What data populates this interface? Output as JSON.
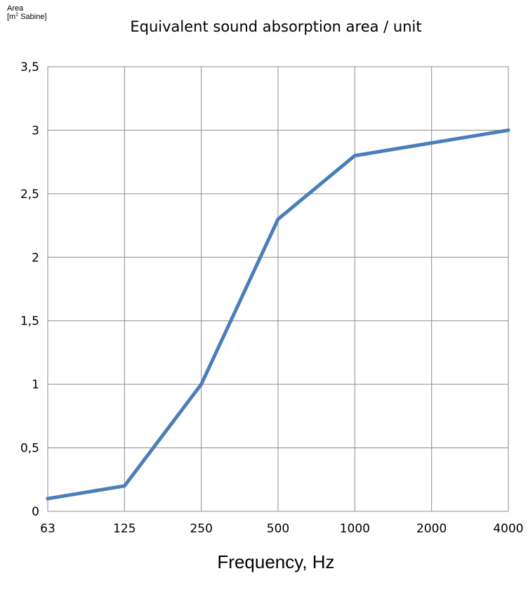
{
  "chart_data": {
    "type": "line",
    "title": "Equivalent sound absorption area / unit",
    "ylabel_line1": "Area",
    "ylabel_line2_prefix": "[m",
    "ylabel_line2_sup": "2",
    "ylabel_line2_suffix": " Sabine]",
    "xlabel": "Frequency, Hz",
    "categories": [
      "63",
      "125",
      "250",
      "500",
      "1000",
      "2000",
      "4000"
    ],
    "series": [
      {
        "values": [
          0.1,
          0.2,
          1.0,
          2.3,
          2.8,
          2.9,
          3.0
        ],
        "color": "#4a7ebb"
      }
    ],
    "ylim": [
      0,
      3.5
    ],
    "yticks": [
      0,
      0.5,
      1,
      1.5,
      2,
      2.5,
      3,
      3.5
    ],
    "ytick_labels": [
      "0",
      "0,5",
      "1",
      "1,5",
      "2",
      "2,5",
      "3",
      "3,5"
    ],
    "grid": true,
    "grid_color": "#8c8c8c",
    "legend": "none"
  }
}
